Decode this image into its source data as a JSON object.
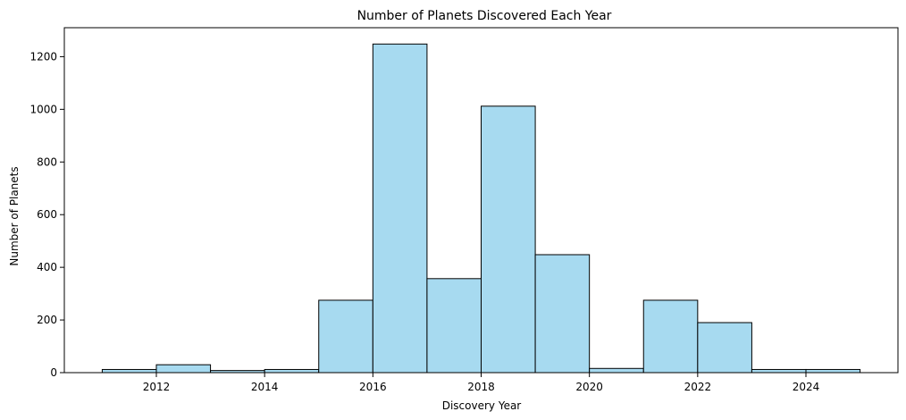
{
  "chart_data": {
    "type": "bar",
    "title": "Number of Planets Discovered Each Year",
    "xlabel": "Discovery Year",
    "ylabel": "Number of Planets",
    "bins": [
      {
        "start": 2011,
        "end": 2012,
        "value": 12
      },
      {
        "start": 2012,
        "end": 2013,
        "value": 30
      },
      {
        "start": 2013,
        "end": 2014,
        "value": 8
      },
      {
        "start": 2014,
        "end": 2015,
        "value": 12
      },
      {
        "start": 2015,
        "end": 2016,
        "value": 275
      },
      {
        "start": 2016,
        "end": 2017,
        "value": 1248
      },
      {
        "start": 2017,
        "end": 2018,
        "value": 357
      },
      {
        "start": 2018,
        "end": 2019,
        "value": 1012
      },
      {
        "start": 2019,
        "end": 2020,
        "value": 448
      },
      {
        "start": 2020,
        "end": 2021,
        "value": 16
      },
      {
        "start": 2021,
        "end": 2022,
        "value": 275
      },
      {
        "start": 2022,
        "end": 2023,
        "value": 190
      },
      {
        "start": 2023,
        "end": 2024,
        "value": 12
      },
      {
        "start": 2024,
        "end": 2025,
        "value": 12
      }
    ],
    "xlim": [
      2010.3,
      2025.7
    ],
    "ylim": [
      0,
      1310
    ],
    "xticks": [
      {
        "value": 2012,
        "label": "2012"
      },
      {
        "value": 2014,
        "label": "2014"
      },
      {
        "value": 2016,
        "label": "2016"
      },
      {
        "value": 2018,
        "label": "2018"
      },
      {
        "value": 2020,
        "label": "2020"
      },
      {
        "value": 2022,
        "label": "2022"
      },
      {
        "value": 2024,
        "label": "2024"
      }
    ],
    "yticks": [
      {
        "value": 0,
        "label": "0"
      },
      {
        "value": 200,
        "label": "200"
      },
      {
        "value": 400,
        "label": "400"
      },
      {
        "value": 600,
        "label": "600"
      },
      {
        "value": 800,
        "label": "800"
      },
      {
        "value": 1000,
        "label": "1000"
      },
      {
        "value": 1200,
        "label": "1200"
      }
    ],
    "grid": false,
    "bar_color": "#a7daf0",
    "edge_color": "#000000"
  }
}
